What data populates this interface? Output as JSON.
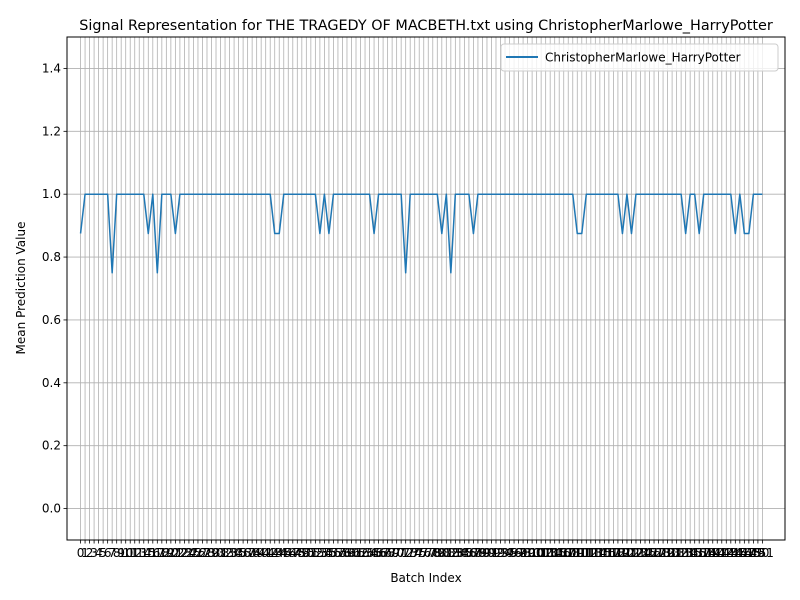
{
  "chart_data": {
    "type": "line",
    "title": "Signal Representation for THE TRAGEDY OF MACBETH.txt using ChristopherMarlowe_HarryPotter",
    "xlabel": "Batch Index",
    "ylabel": "Mean Prediction Value",
    "xlim": [
      -3,
      156
    ],
    "ylim": [
      -0.1,
      1.5
    ],
    "y_ticks": [
      0.0,
      0.2,
      0.4,
      0.6,
      0.8,
      1.0,
      1.2,
      1.4
    ],
    "x_tick_step": 1,
    "grid": true,
    "legend_position": "top-right",
    "series": [
      {
        "name": "ChristopherMarlowe_HarryPotter",
        "color": "#1f77b4",
        "values": [
          0.875,
          1,
          1,
          1,
          1,
          1,
          1,
          0.75,
          1,
          1,
          1,
          1,
          1,
          1,
          1,
          0.875,
          1,
          0.75,
          1,
          1,
          1,
          0.875,
          1,
          1,
          1,
          1,
          1,
          1,
          1,
          1,
          1,
          1,
          1,
          1,
          1,
          1,
          1,
          1,
          1,
          1,
          1,
          1,
          1,
          0.875,
          0.875,
          1,
          1,
          1,
          1,
          1,
          1,
          1,
          1,
          0.875,
          1,
          0.875,
          1,
          1,
          1,
          1,
          1,
          1,
          1,
          1,
          1,
          0.875,
          1,
          1,
          1,
          1,
          1,
          1,
          0.75,
          1,
          1,
          1,
          1,
          1,
          1,
          1,
          0.875,
          1,
          0.75,
          1,
          1,
          1,
          1,
          0.875,
          1,
          1,
          1,
          1,
          1,
          1,
          1,
          1,
          1,
          1,
          1,
          1,
          1,
          1,
          1,
          1,
          1,
          1,
          1,
          1,
          1,
          1,
          0.875,
          0.875,
          1,
          1,
          1,
          1,
          1,
          1,
          1,
          1,
          0.875,
          1,
          0.875,
          1,
          1,
          1,
          1,
          1,
          1,
          1,
          1,
          1,
          1,
          1,
          0.875,
          1,
          1,
          0.875,
          1,
          1,
          1,
          1,
          1,
          1,
          1,
          0.875,
          1,
          0.875,
          0.875,
          1,
          1,
          1
        ]
      }
    ]
  }
}
